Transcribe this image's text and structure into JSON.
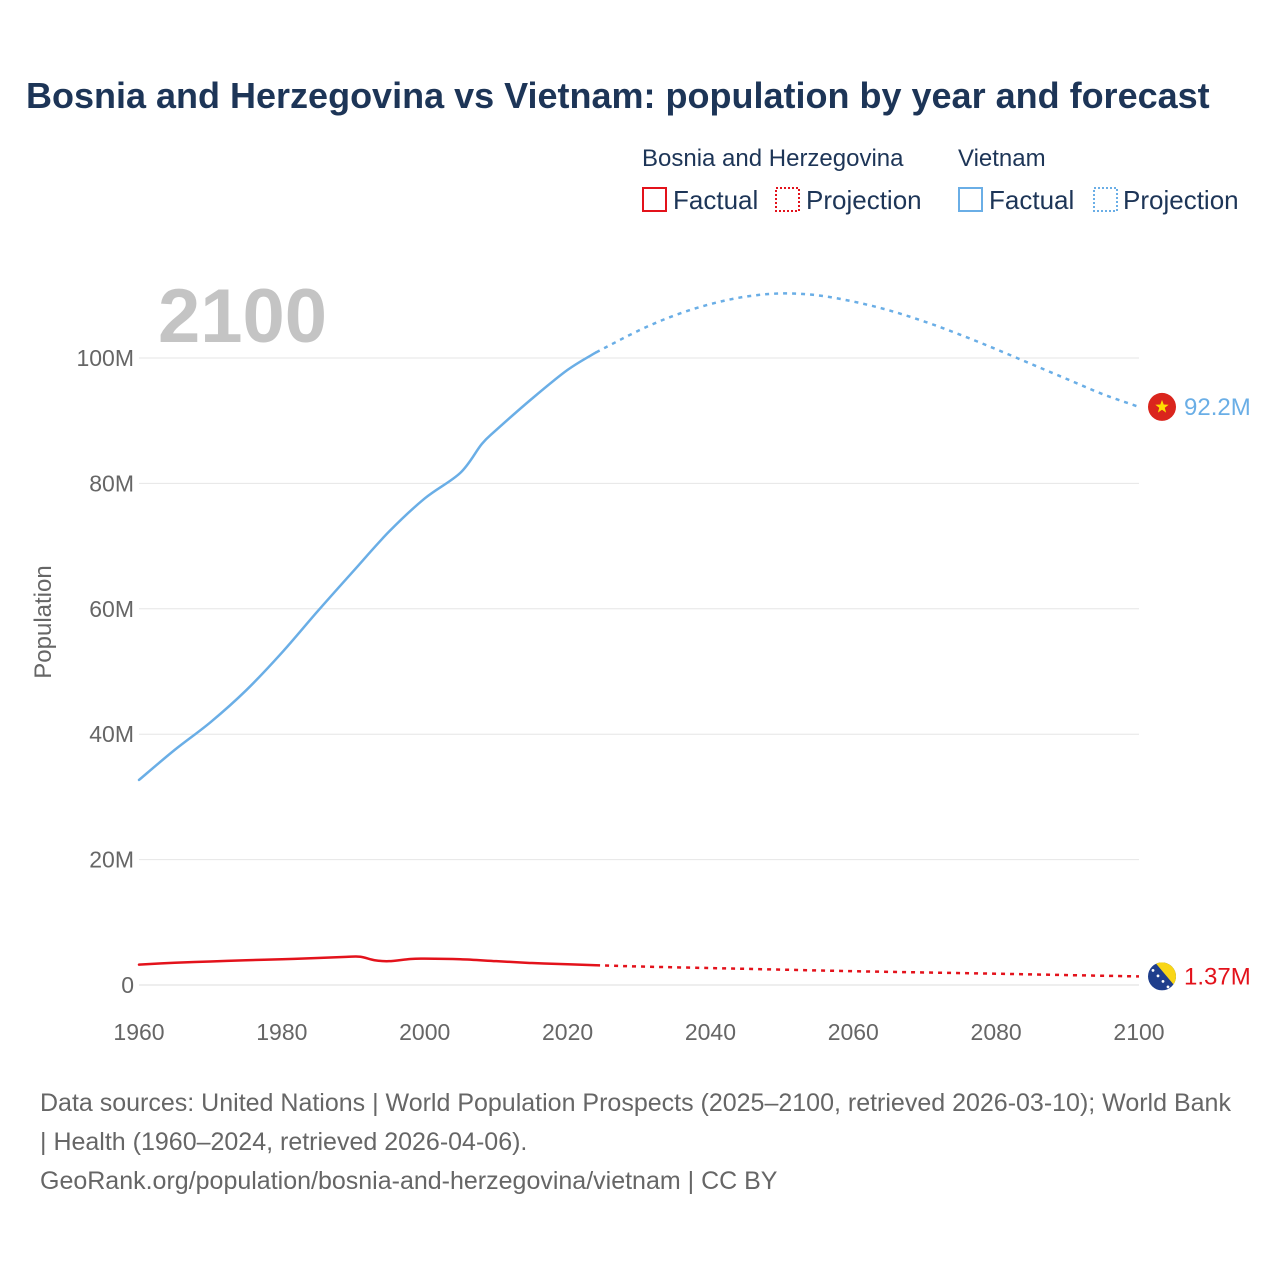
{
  "chart_data": {
    "type": "line",
    "title": "Bosnia and Herzegovina vs Vietnam: population by year and forecast",
    "current_year_label": "2100",
    "ylabel": "Population",
    "xlabel": "",
    "xlim": [
      1960,
      2100
    ],
    "ylim": [
      0,
      110000000
    ],
    "x_ticks": [
      1960,
      1980,
      2000,
      2020,
      2040,
      2060,
      2080,
      2100
    ],
    "y_ticks": [
      {
        "value": 0,
        "label": "0"
      },
      {
        "value": 20000000,
        "label": "20M"
      },
      {
        "value": 40000000,
        "label": "40M"
      },
      {
        "value": 60000000,
        "label": "60M"
      },
      {
        "value": 80000000,
        "label": "80M"
      },
      {
        "value": 100000000,
        "label": "100M"
      }
    ],
    "grid": true,
    "legend": {
      "placement": "top-right",
      "factual_label": "Factual",
      "projection_label": "Projection"
    },
    "series": [
      {
        "name": "Bosnia and Herzegovina",
        "color": "#e3121b",
        "end_label": "1.37M",
        "flag": "bosnia-flag",
        "factual": [
          [
            1960,
            3.25
          ],
          [
            1965,
            3.55
          ],
          [
            1970,
            3.75
          ],
          [
            1975,
            3.95
          ],
          [
            1980,
            4.1
          ],
          [
            1985,
            4.3
          ],
          [
            1989,
            4.48
          ],
          [
            1991,
            4.5
          ],
          [
            1993,
            3.95
          ],
          [
            1995,
            3.8
          ],
          [
            1998,
            4.15
          ],
          [
            2000,
            4.2
          ],
          [
            2005,
            4.1
          ],
          [
            2010,
            3.8
          ],
          [
            2015,
            3.5
          ],
          [
            2020,
            3.3
          ],
          [
            2024,
            3.15
          ]
        ],
        "projection": [
          [
            2024,
            3.15
          ],
          [
            2030,
            2.95
          ],
          [
            2040,
            2.7
          ],
          [
            2050,
            2.45
          ],
          [
            2060,
            2.2
          ],
          [
            2070,
            2.0
          ],
          [
            2080,
            1.8
          ],
          [
            2090,
            1.58
          ],
          [
            2100,
            1.37
          ]
        ]
      },
      {
        "name": "Vietnam",
        "color": "#6aaee6",
        "end_label": "92.2M",
        "flag": "vietnam-flag",
        "factual": [
          [
            1960,
            32.7
          ],
          [
            1965,
            37.5
          ],
          [
            1970,
            41.9
          ],
          [
            1975,
            47.0
          ],
          [
            1980,
            53.0
          ],
          [
            1985,
            59.6
          ],
          [
            1990,
            66.0
          ],
          [
            1995,
            72.3
          ],
          [
            2000,
            77.6
          ],
          [
            2005,
            81.7
          ],
          [
            2008,
            86.3
          ],
          [
            2010,
            88.5
          ],
          [
            2015,
            93.5
          ],
          [
            2020,
            98.1
          ],
          [
            2024,
            100.9
          ]
        ],
        "projection": [
          [
            2024,
            100.9
          ],
          [
            2030,
            104.4
          ],
          [
            2035,
            106.8
          ],
          [
            2040,
            108.6
          ],
          [
            2045,
            109.8
          ],
          [
            2050,
            110.3
          ],
          [
            2055,
            110.0
          ],
          [
            2060,
            109.0
          ],
          [
            2065,
            107.6
          ],
          [
            2070,
            105.8
          ],
          [
            2075,
            103.7
          ],
          [
            2080,
            101.4
          ],
          [
            2085,
            99.0
          ],
          [
            2090,
            96.6
          ],
          [
            2095,
            94.2
          ],
          [
            2100,
            92.2
          ]
        ]
      }
    ]
  },
  "source": {
    "line1": "Data sources: United Nations | World Population Prospects (2025–2100, retrieved 2026-03-10); World Bank | Health (1960–2024, retrieved 2026-04-06).",
    "line2": "GeoRank.org/population/bosnia-and-herzegovina/vietnam | CC BY"
  }
}
